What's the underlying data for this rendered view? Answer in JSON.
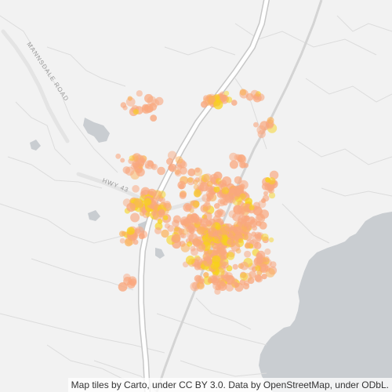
{
  "map": {
    "labels": {
      "road_1": "MANNSDALE ROAD",
      "road_2": "HWY 43"
    },
    "attribution": "Map tiles by Carto, under CC BY 3.0. Data by OpenStreetMap, under ODbL.",
    "colors": {
      "land": "#f2f2f2",
      "water": "#c9cdd1",
      "highway": "#ffffff",
      "highway_casing": "#c7c7c7",
      "minor_road": "#dcdcdc",
      "point_low": "#f9a77e",
      "point_mid": "#fbb25c",
      "point_high": "#f7d21b"
    },
    "icons": [
      "water-body",
      "highway",
      "minor-road",
      "heat-point"
    ]
  }
}
